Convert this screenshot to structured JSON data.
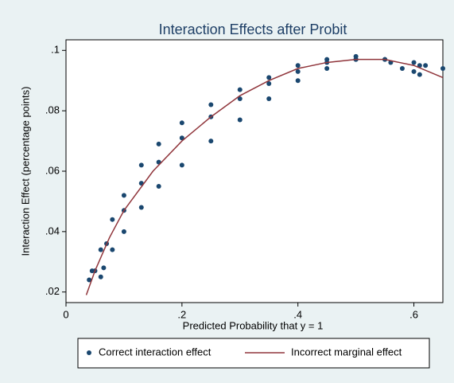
{
  "chart_data": {
    "type": "scatter",
    "title": "Interaction Effects after Probit",
    "x_label": "Predicted Probability that y = 1",
    "y_label": "Interaction Effect (percentage points)",
    "xlim": [
      0,
      0.65
    ],
    "ylim": [
      0.0165,
      0.1035
    ],
    "xticks": [
      0,
      {
        "value": 0.2,
        "label": ".2"
      },
      {
        "value": 0.4,
        "label": ".4"
      },
      {
        "value": 0.6,
        "label": ".6"
      }
    ],
    "yticks": [
      {
        "value": 0.02,
        "label": ".02"
      },
      {
        "value": 0.04,
        "label": ".04"
      },
      {
        "value": 0.06,
        "label": ".06"
      },
      {
        "value": 0.08,
        "label": ".08"
      },
      {
        "value": 0.1,
        "label": ".1"
      }
    ],
    "series": [
      {
        "name": "Correct interaction effect",
        "type": "scatter",
        "color": "#1a476f",
        "x": [
          0.045,
          0.06,
          0.08,
          0.1,
          0.13,
          0.16,
          0.2,
          0.25,
          0.3,
          0.35,
          0.4,
          0.45,
          0.5,
          0.55,
          0.05,
          0.07,
          0.1,
          0.13,
          0.16,
          0.2,
          0.25,
          0.3,
          0.35,
          0.4,
          0.45,
          0.5,
          0.065,
          0.08,
          0.1,
          0.13,
          0.16,
          0.2,
          0.25,
          0.3,
          0.35,
          0.4,
          0.45,
          0.5,
          0.55,
          0.56,
          0.58,
          0.6,
          0.61,
          0.62,
          0.65,
          0.6,
          0.61,
          0.04,
          0.06
        ],
        "values": [
          0.027,
          0.034,
          0.044,
          0.052,
          0.062,
          0.069,
          0.076,
          0.082,
          0.087,
          0.091,
          0.095,
          0.097,
          0.098,
          0.097,
          0.027,
          0.036,
          0.047,
          0.056,
          0.063,
          0.071,
          0.078,
          0.084,
          0.089,
          0.093,
          0.096,
          0.097,
          0.028,
          0.034,
          0.04,
          0.048,
          0.055,
          0.062,
          0.07,
          0.077,
          0.084,
          0.09,
          0.094,
          0.097,
          0.097,
          0.096,
          0.094,
          0.096,
          0.095,
          0.095,
          0.094,
          0.093,
          0.092,
          0.024,
          0.025
        ]
      },
      {
        "name": "Incorrect marginal effect",
        "type": "line",
        "color": "#90353b",
        "x": [
          0.035,
          0.05,
          0.075,
          0.1,
          0.15,
          0.2,
          0.25,
          0.3,
          0.35,
          0.4,
          0.45,
          0.5,
          0.55,
          0.6,
          0.65
        ],
        "values": [
          0.019,
          0.027,
          0.038,
          0.047,
          0.06,
          0.07,
          0.078,
          0.085,
          0.09,
          0.094,
          0.096,
          0.097,
          0.097,
          0.095,
          0.091
        ]
      }
    ]
  }
}
